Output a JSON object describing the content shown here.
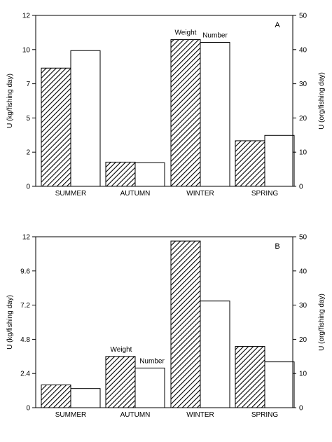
{
  "chart_data": [
    {
      "type": "bar",
      "panel_label": "A",
      "categories": [
        "SUMMER",
        "AUTUMN",
        "WINTER",
        "SPRING"
      ],
      "series": [
        {
          "name": "Weight",
          "axis": "left",
          "pattern": "hatched",
          "values": [
            8.3,
            1.7,
            10.3,
            3.2
          ]
        },
        {
          "name": "Number",
          "axis": "right",
          "pattern": "white",
          "values": [
            39.7,
            6.9,
            42.1,
            14.9
          ]
        }
      ],
      "series_labels": [
        "Weight",
        "Number"
      ],
      "ylabel": "U (kg/fishing day)",
      "ylabel_right": "U (org/fishing day)",
      "ylim": [
        0,
        12
      ],
      "ylim_right": [
        0,
        50
      ],
      "yticks": [
        "0",
        "2",
        "5",
        "7",
        "10",
        "12"
      ],
      "ytick_values": [
        0,
        2.4,
        4.8,
        7.2,
        9.6,
        12
      ],
      "yticks_right": [
        "0",
        "10",
        "20",
        "30",
        "40",
        "50"
      ]
    },
    {
      "type": "bar",
      "panel_label": "B",
      "categories": [
        "SUMMER",
        "AUTUMN",
        "WINTER",
        "SPRING"
      ],
      "series": [
        {
          "name": "Weight",
          "axis": "left",
          "pattern": "hatched",
          "values": [
            1.6,
            3.6,
            11.7,
            4.3
          ]
        },
        {
          "name": "Number",
          "axis": "right",
          "pattern": "white",
          "values": [
            5.6,
            11.6,
            31.2,
            13.4
          ]
        }
      ],
      "series_labels": [
        "Weight",
        "Number"
      ],
      "ylabel": "U (kg/fishing day)",
      "ylabel_right": "U (org/fishing day)",
      "ylim": [
        0,
        12
      ],
      "ylim_right": [
        0,
        50
      ],
      "yticks": [
        "0",
        "2.4",
        "4.8",
        "7.2",
        "9.6",
        "12"
      ],
      "ytick_values": [
        0,
        2.4,
        4.8,
        7.2,
        9.6,
        12
      ],
      "yticks_right": [
        "0",
        "10",
        "20",
        "30",
        "40",
        "50"
      ]
    }
  ]
}
